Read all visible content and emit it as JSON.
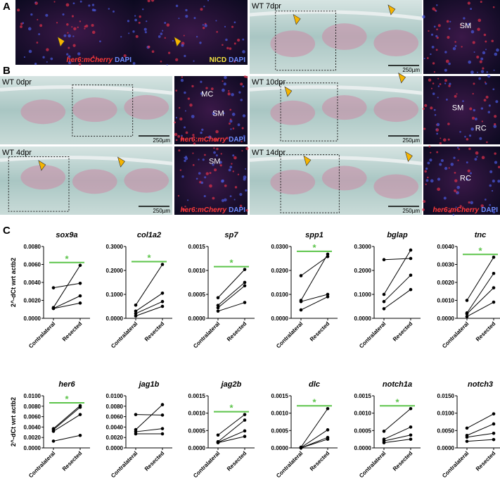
{
  "figure": {
    "panel_labels": [
      "A",
      "B",
      "C"
    ]
  },
  "images": [
    {
      "kind": "fluor",
      "stain": [
        {
          "text": "her6:mCherry",
          "color": "#ff3a3a"
        },
        {
          "text": "DAPI",
          "color": "#6f8cff"
        }
      ]
    },
    {
      "kind": "fluor",
      "stain": [
        {
          "text": "NICD",
          "color": "#f5e642"
        },
        {
          "text": "DAPI",
          "color": "#6f8cff"
        }
      ]
    },
    {
      "kind": "histo",
      "title": "WT 7dpr",
      "scale": "250µm"
    },
    {
      "kind": "fluor",
      "labels": [
        "SM"
      ]
    },
    {
      "kind": "histo",
      "title": "WT 0dpr",
      "scale": "250µm"
    },
    {
      "kind": "fluor",
      "labels": [
        "MC",
        "SM"
      ],
      "stain": [
        {
          "text": "her6:mCherry",
          "color": "#ff3a3a"
        },
        {
          "text": "DAPI",
          "color": "#6f8cff"
        }
      ]
    },
    {
      "kind": "histo",
      "title": "WT 10dpr",
      "scale": "250µm"
    },
    {
      "kind": "fluor",
      "labels": [
        "SM",
        "RC"
      ]
    },
    {
      "kind": "histo",
      "title": "WT 4dpr",
      "scale": "250µm"
    },
    {
      "kind": "fluor",
      "labels": [
        "SM"
      ],
      "stain": [
        {
          "text": "her6:mCherry",
          "color": "#ff3a3a"
        },
        {
          "text": "DAPI",
          "color": "#6f8cff"
        }
      ]
    },
    {
      "kind": "histo",
      "title": "WT 14dpr",
      "scale": "250µm"
    },
    {
      "kind": "fluor",
      "labels": [
        "RC"
      ],
      "stain": [
        {
          "text": "her6:mCherry",
          "color": "#ff3a3a"
        },
        {
          "text": "DAPI",
          "color": "#6f8cff"
        }
      ]
    }
  ],
  "chart_data": [
    {
      "type": "paired",
      "title": "sox9a",
      "y_label": "2^-dCt wrt actb2",
      "categories": [
        "Contralateral",
        "Resected"
      ],
      "significance": "*",
      "sig_color": "#5cc44a",
      "ylim": [
        0,
        0.008
      ],
      "yticks": [
        {
          "value": 0,
          "label": "0.0000"
        },
        {
          "value": 0.002,
          "label": "0.0020"
        },
        {
          "value": 0.004,
          "label": "0.0040"
        },
        {
          "value": 0.006,
          "label": "0.0060"
        },
        {
          "value": 0.008,
          "label": "0.0080"
        }
      ],
      "series": [
        {
          "color": "#000000",
          "values": [
            0.0034,
            0.0039
          ]
        },
        {
          "color": "#000000",
          "values": [
            0.0012,
            0.0059
          ]
        },
        {
          "color": "#000000",
          "values": [
            0.0011,
            0.0025
          ]
        },
        {
          "color": "#000000",
          "values": [
            0.0011,
            0.0017
          ]
        }
      ]
    },
    {
      "type": "paired",
      "title": "col1a2",
      "categories": [
        "Contralateral",
        "Resected"
      ],
      "significance": "*",
      "sig_color": "#5cc44a",
      "ylim": [
        0,
        0.3
      ],
      "yticks": [
        {
          "value": 0,
          "label": "0.0000"
        },
        {
          "value": 0.1,
          "label": "0.1000"
        },
        {
          "value": 0.2,
          "label": "0.2000"
        },
        {
          "value": 0.3,
          "label": "0.3000"
        }
      ],
      "series": [
        {
          "color": "#000000",
          "values": [
            0.055,
            0.225
          ]
        },
        {
          "color": "#000000",
          "values": [
            0.03,
            0.105
          ]
        },
        {
          "color": "#000000",
          "values": [
            0.02,
            0.07
          ]
        },
        {
          "color": "#000000",
          "values": [
            0.01,
            0.05
          ]
        }
      ]
    },
    {
      "type": "paired",
      "title": "sp7",
      "categories": [
        "Contralateral",
        "Resected"
      ],
      "significance": "*",
      "sig_color": "#5cc44a",
      "ylim": [
        0,
        0.0015
      ],
      "yticks": [
        {
          "value": 0,
          "label": "0.0000"
        },
        {
          "value": 0.0005,
          "label": "0.0005"
        },
        {
          "value": 0.001,
          "label": "0.0010"
        },
        {
          "value": 0.0015,
          "label": "0.0015"
        }
      ],
      "series": [
        {
          "color": "#000000",
          "values": [
            0.00043,
            0.00102
          ]
        },
        {
          "color": "#000000",
          "values": [
            0.00027,
            0.00075
          ]
        },
        {
          "color": "#000000",
          "values": [
            0.00022,
            0.00068
          ]
        },
        {
          "color": "#000000",
          "values": [
            0.00015,
            0.00033
          ]
        }
      ]
    },
    {
      "type": "paired",
      "title": "spp1",
      "categories": [
        "Contralateral",
        "Resected"
      ],
      "significance": "*",
      "sig_color": "#5cc44a",
      "ylim": [
        0,
        0.03
      ],
      "yticks": [
        {
          "value": 0,
          "label": "0.0000"
        },
        {
          "value": 0.01,
          "label": "0.0100"
        },
        {
          "value": 0.02,
          "label": "0.0200"
        },
        {
          "value": 0.03,
          "label": "0.0300"
        }
      ],
      "series": [
        {
          "color": "#000000",
          "values": [
            0.0178,
            0.0258
          ]
        },
        {
          "color": "#000000",
          "values": [
            0.0075,
            0.0268
          ]
        },
        {
          "color": "#000000",
          "values": [
            0.007,
            0.01
          ]
        },
        {
          "color": "#000000",
          "values": [
            0.0035,
            0.009
          ]
        }
      ]
    },
    {
      "type": "paired",
      "title": "bglap",
      "categories": [
        "Contralateral",
        "Resected"
      ],
      "ylim": [
        0,
        0.3
      ],
      "yticks": [
        {
          "value": 0,
          "label": "0.0000"
        },
        {
          "value": 0.1,
          "label": "0.1000"
        },
        {
          "value": 0.2,
          "label": "0.2000"
        },
        {
          "value": 0.3,
          "label": "0.3000"
        }
      ],
      "series": [
        {
          "color": "#000000",
          "values": [
            0.245,
            0.25
          ]
        },
        {
          "color": "#000000",
          "values": [
            0.1,
            0.285
          ]
        },
        {
          "color": "#000000",
          "values": [
            0.07,
            0.18
          ]
        },
        {
          "color": "#000000",
          "values": [
            0.04,
            0.12
          ]
        }
      ]
    },
    {
      "type": "paired",
      "title": "tnc",
      "categories": [
        "Contralateral",
        "Resected"
      ],
      "significance": "*",
      "sig_color": "#5cc44a",
      "ylim": [
        0,
        0.004
      ],
      "yticks": [
        {
          "value": 0,
          "label": "0.0000"
        },
        {
          "value": 0.001,
          "label": "0.0010"
        },
        {
          "value": 0.002,
          "label": "0.0020"
        },
        {
          "value": 0.003,
          "label": "0.0030"
        },
        {
          "value": 0.004,
          "label": "0.0040"
        }
      ],
      "series": [
        {
          "color": "#000000",
          "values": [
            0.001,
            0.0034
          ]
        },
        {
          "color": "#000000",
          "values": [
            0.0003,
            0.0025
          ]
        },
        {
          "color": "#000000",
          "values": [
            0.00025,
            0.0017
          ]
        },
        {
          "color": "#000000",
          "values": [
            0.0001,
            0.0009
          ]
        }
      ]
    },
    {
      "type": "paired",
      "title": "her6",
      "y_label": "2^-dCt wrt actb2",
      "categories": [
        "Contralateral",
        "Resected"
      ],
      "significance": "*",
      "sig_color": "#5cc44a",
      "ylim": [
        0,
        0.01
      ],
      "yticks": [
        {
          "value": 0,
          "label": "0.0000"
        },
        {
          "value": 0.002,
          "label": "0.0020"
        },
        {
          "value": 0.004,
          "label": "0.0040"
        },
        {
          "value": 0.006,
          "label": "0.0060"
        },
        {
          "value": 0.008,
          "label": "0.0080"
        },
        {
          "value": 0.01,
          "label": "0.0100"
        }
      ],
      "series": [
        {
          "color": "#000000",
          "values": [
            0.0037,
            0.0081
          ]
        },
        {
          "color": "#000000",
          "values": [
            0.0035,
            0.0078
          ]
        },
        {
          "color": "#000000",
          "values": [
            0.0032,
            0.0064
          ]
        },
        {
          "color": "#000000",
          "values": [
            0.0013,
            0.0024
          ]
        }
      ]
    },
    {
      "type": "paired",
      "title": "jag1b",
      "categories": [
        "Contralateral",
        "Resected"
      ],
      "ylim": [
        0,
        0.01
      ],
      "yticks": [
        {
          "value": 0,
          "label": "0.0000"
        },
        {
          "value": 0.002,
          "label": "0.0020"
        },
        {
          "value": 0.004,
          "label": "0.0040"
        },
        {
          "value": 0.006,
          "label": "0.0060"
        },
        {
          "value": 0.008,
          "label": "0.0080"
        },
        {
          "value": 0.01,
          "label": "0.0100"
        }
      ],
      "series": [
        {
          "color": "#000000",
          "values": [
            0.0064,
            0.0063
          ]
        },
        {
          "color": "#000000",
          "values": [
            0.0035,
            0.0083
          ]
        },
        {
          "color": "#000000",
          "values": [
            0.0031,
            0.0037
          ]
        },
        {
          "color": "#000000",
          "values": [
            0.0027,
            0.0027
          ]
        }
      ]
    },
    {
      "type": "paired",
      "title": "jag2b",
      "categories": [
        "Contralateral",
        "Resected"
      ],
      "significance": "*",
      "sig_color": "#5cc44a",
      "ylim": [
        0,
        0.0015
      ],
      "yticks": [
        {
          "value": 0,
          "label": "0.0000"
        },
        {
          "value": 0.0005,
          "label": "0.0005"
        },
        {
          "value": 0.001,
          "label": "0.0010"
        },
        {
          "value": 0.0015,
          "label": "0.0015"
        }
      ],
      "series": [
        {
          "color": "#000000",
          "values": [
            0.00037,
            0.00096
          ]
        },
        {
          "color": "#000000",
          "values": [
            0.00018,
            0.0008
          ]
        },
        {
          "color": "#000000",
          "values": [
            0.00016,
            0.00049
          ]
        },
        {
          "color": "#000000",
          "values": [
            0.00015,
            0.00033
          ]
        }
      ]
    },
    {
      "type": "paired",
      "title": "dlc",
      "categories": [
        "Contralateral",
        "Resected"
      ],
      "significance": "*",
      "sig_color": "#5cc44a",
      "ylim": [
        0,
        0.0015
      ],
      "yticks": [
        {
          "value": 0,
          "label": "0.0000"
        },
        {
          "value": 0.0005,
          "label": "0.0005"
        },
        {
          "value": 0.001,
          "label": "0.0010"
        },
        {
          "value": 0.0015,
          "label": "0.0015"
        }
      ],
      "series": [
        {
          "color": "#000000",
          "values": [
            2e-05,
            0.00113
          ]
        },
        {
          "color": "#000000",
          "values": [
            1e-05,
            0.00052
          ]
        },
        {
          "color": "#000000",
          "values": [
            0,
            0.0003
          ]
        },
        {
          "color": "#000000",
          "values": [
            0,
            0.00025
          ]
        }
      ]
    },
    {
      "type": "paired",
      "title": "notch1a",
      "categories": [
        "Contralateral",
        "Resected"
      ],
      "significance": "*",
      "sig_color": "#5cc44a",
      "ylim": [
        0,
        0.0015
      ],
      "yticks": [
        {
          "value": 0,
          "label": "0.0000"
        },
        {
          "value": 0.0005,
          "label": "0.0005"
        },
        {
          "value": 0.001,
          "label": "0.0010"
        },
        {
          "value": 0.0015,
          "label": "0.0015"
        }
      ],
      "series": [
        {
          "color": "#000000",
          "values": [
            0.00048,
            0.00113
          ]
        },
        {
          "color": "#000000",
          "values": [
            0.00025,
            0.0006
          ]
        },
        {
          "color": "#000000",
          "values": [
            0.0002,
            0.00037
          ]
        },
        {
          "color": "#000000",
          "values": [
            0.00015,
            0.00025
          ]
        }
      ]
    },
    {
      "type": "paired",
      "title": "notch3",
      "categories": [
        "Contralateral",
        "Resected"
      ],
      "ylim": [
        0,
        0.015
      ],
      "yticks": [
        {
          "value": 0,
          "label": "0.0000"
        },
        {
          "value": 0.005,
          "label": "0.0050"
        },
        {
          "value": 0.01,
          "label": "0.0100"
        },
        {
          "value": 0.015,
          "label": "0.0150"
        }
      ],
      "series": [
        {
          "color": "#000000",
          "values": [
            0.0057,
            0.0098
          ]
        },
        {
          "color": "#000000",
          "values": [
            0.0036,
            0.0069
          ]
        },
        {
          "color": "#000000",
          "values": [
            0.0031,
            0.0042
          ]
        },
        {
          "color": "#000000",
          "values": [
            0.0019,
            0.0024
          ]
        }
      ]
    }
  ]
}
